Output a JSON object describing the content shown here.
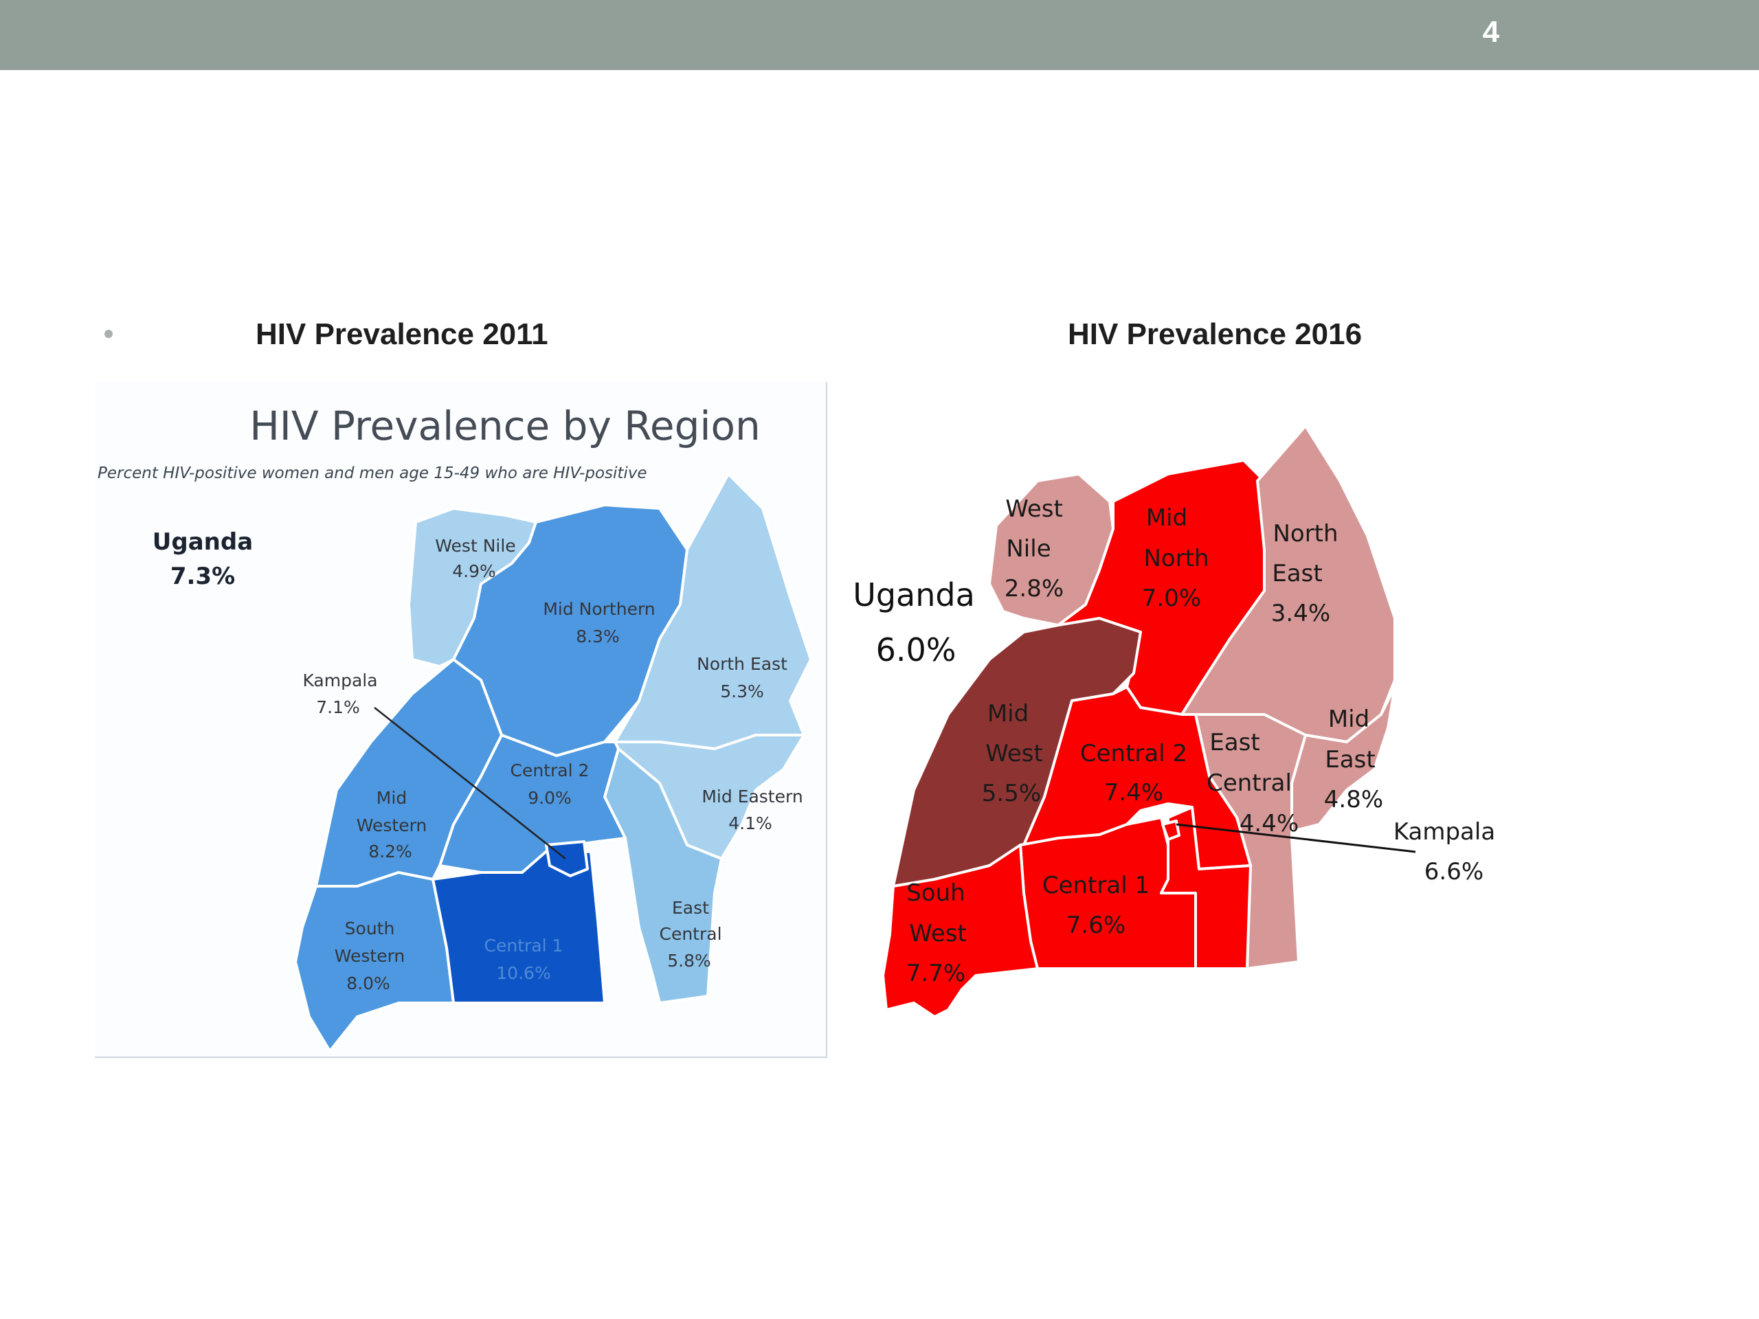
{
  "slide": {
    "number": "4"
  },
  "headings": {
    "left": "HIV Prevalence 2011",
    "right": "HIV Prevalence 2016"
  },
  "map_2011": {
    "title": "HIV Prevalence by Region",
    "subtitle": "Percent HIV-positive women and men age 15-49 who are HIV-positive",
    "national": {
      "name": "Uganda",
      "value": "7.3%"
    },
    "regions": {
      "west_nile": {
        "name": "West Nile",
        "value": "4.9%",
        "color": "#a9d2ef"
      },
      "mid_northern": {
        "name": "Mid Northern",
        "value": "8.3%",
        "color": "#4d98e0"
      },
      "north_east": {
        "name": "North East",
        "value": "5.3%",
        "color": "#a9d2ef"
      },
      "mid_eastern": {
        "name": "Mid Eastern",
        "value": "4.1%",
        "color": "#a9d2ef"
      },
      "east_central": {
        "name_line1": "East",
        "name_line2": "Central",
        "value": "5.8%",
        "color": "#8ec4ea"
      },
      "central_2": {
        "name": "Central 2",
        "value": "9.0%",
        "color": "#4d98e0"
      },
      "central_1": {
        "name": "Central 1",
        "value": "10.6%",
        "color": "#0d55c6"
      },
      "mid_western": {
        "name_line1": "Mid",
        "name_line2": "Western",
        "value": "8.2%",
        "color": "#4d98e0"
      },
      "south_western": {
        "name_line1": "South",
        "name_line2": "Western",
        "value": "8.0%",
        "color": "#4d98e0"
      },
      "kampala": {
        "name": "Kampala",
        "value": "7.1%",
        "color": "#0d55c6"
      }
    }
  },
  "map_2016": {
    "national": {
      "name": "Uganda",
      "value": "6.0%"
    },
    "regions": {
      "west_nile": {
        "name_line1": "West",
        "name_line2": "Nile",
        "value": "2.8%",
        "color": "#d69896"
      },
      "mid_north": {
        "name_line1": "Mid",
        "name_line2": "North",
        "value": "7.0%",
        "color": "#fb0000"
      },
      "north_east": {
        "name_line1": "North",
        "name_line2": "East",
        "value": "3.4%",
        "color": "#d69896"
      },
      "mid_east": {
        "name_line1": "Mid",
        "name_line2": "East",
        "value": "4.8%",
        "color": "#d69896"
      },
      "east_central": {
        "name_line1": "East",
        "name_line2": "Central",
        "value": "4.4%",
        "color": "#d69896"
      },
      "central_2": {
        "name": "Central 2",
        "value": "7.4%",
        "color": "#fb0000"
      },
      "central_1": {
        "name": "Central 1",
        "value": "7.6%",
        "color": "#fb0000"
      },
      "mid_west": {
        "name_line1": "Mid",
        "name_line2": "West",
        "value": "5.5%",
        "color": "#8d3432"
      },
      "south_west": {
        "name_line1": "Souh",
        "name_line2": "West",
        "value": "7.7%",
        "color": "#fb0000"
      },
      "kampala": {
        "name": "Kampala",
        "value": "6.6%",
        "color": "#fb0000"
      }
    }
  }
}
